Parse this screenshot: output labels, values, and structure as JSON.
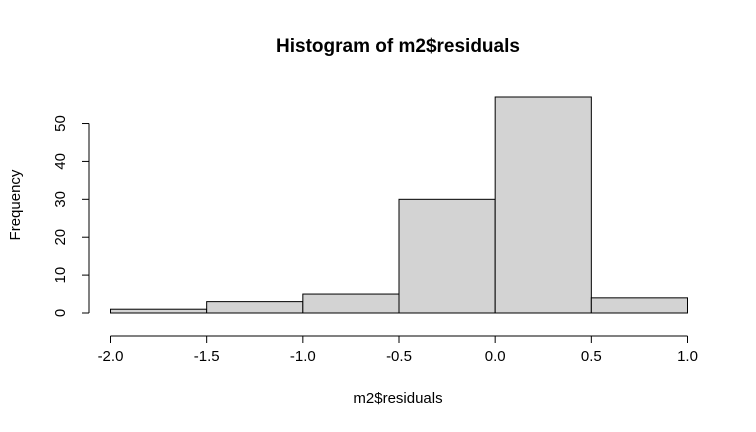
{
  "chart_data": {
    "type": "bar",
    "title": "Histogram of m2$residuals",
    "xlabel": "m2$residuals",
    "ylabel": "Frequency",
    "bins": [
      {
        "start": -2.0,
        "end": -1.5,
        "count": 1
      },
      {
        "start": -1.5,
        "end": -1.0,
        "count": 3
      },
      {
        "start": -1.0,
        "end": -0.5,
        "count": 5
      },
      {
        "start": -0.5,
        "end": 0.0,
        "count": 30
      },
      {
        "start": 0.0,
        "end": 0.5,
        "count": 57
      },
      {
        "start": 0.5,
        "end": 1.0,
        "count": 4
      }
    ],
    "xlim": [
      -2.0,
      1.0
    ],
    "ylim": [
      0,
      57
    ],
    "x_ticks": [
      -2.0,
      -1.5,
      -1.0,
      -0.5,
      0.0,
      0.5,
      1.0
    ],
    "x_tick_labels": [
      "-2.0",
      "-1.5",
      "-1.0",
      "-0.5",
      "0.0",
      "0.5",
      "1.0"
    ],
    "y_ticks": [
      0,
      10,
      20,
      30,
      40,
      50
    ],
    "y_tick_labels": [
      "0",
      "10",
      "20",
      "30",
      "40",
      "50"
    ],
    "grid": false,
    "colors": {
      "bar_fill": "#d3d3d3",
      "bar_stroke": "#000000"
    }
  }
}
